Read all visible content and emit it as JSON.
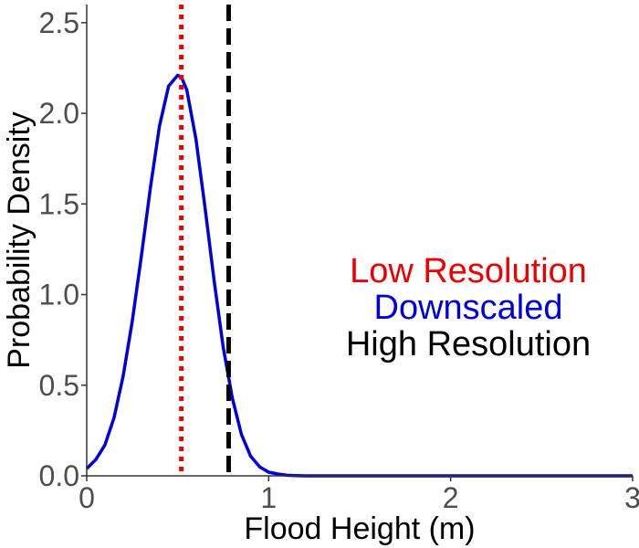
{
  "chart_data": {
    "type": "line",
    "title": "",
    "xlabel": "Flood Height (m)",
    "ylabel": "Probability Density",
    "xlim": [
      0,
      3
    ],
    "ylim": [
      0,
      2.6
    ],
    "grid": false,
    "x_ticks": [
      0,
      1,
      2,
      3
    ],
    "x_tick_labels": [
      "0",
      "1",
      "2",
      "3"
    ],
    "y_ticks": [
      0,
      0.5,
      1.0,
      1.5,
      2.0,
      2.5
    ],
    "y_tick_labels": [
      "0.0",
      "0.5",
      "1.0",
      "1.5",
      "2.0",
      "2.5"
    ],
    "series": [
      {
        "kind": "density-curve",
        "color": "#0000dd",
        "x": [
          0,
          0.05,
          0.1,
          0.15,
          0.2,
          0.25,
          0.3,
          0.35,
          0.4,
          0.45,
          0.5,
          0.52,
          0.55,
          0.6,
          0.65,
          0.7,
          0.75,
          0.8,
          0.85,
          0.9,
          0.95,
          1.0,
          1.05,
          1.1,
          1.15,
          1.2,
          1.3,
          1.5,
          2.0,
          2.5,
          3.0
        ],
        "y": [
          0.04,
          0.09,
          0.17,
          0.32,
          0.55,
          0.85,
          1.21,
          1.59,
          1.93,
          2.15,
          2.21,
          2.2,
          2.13,
          1.86,
          1.48,
          1.08,
          0.71,
          0.43,
          0.23,
          0.11,
          0.05,
          0.02,
          0.01,
          0.003,
          0.001,
          0,
          0,
          0,
          0,
          0,
          0
        ]
      }
    ],
    "vlines": [
      {
        "x": 0.52,
        "color": "#ee0000",
        "style": "dotted"
      },
      {
        "x": 0.78,
        "color": "#000000",
        "style": "dashed"
      }
    ],
    "legend": {
      "placement": "center-right",
      "entries": [
        {
          "label": "Low Resolution",
          "color": "#ee0000"
        },
        {
          "label": "Downscaled",
          "color": "#0000dd"
        },
        {
          "label": "High Resolution",
          "color": "#000000"
        }
      ]
    }
  }
}
